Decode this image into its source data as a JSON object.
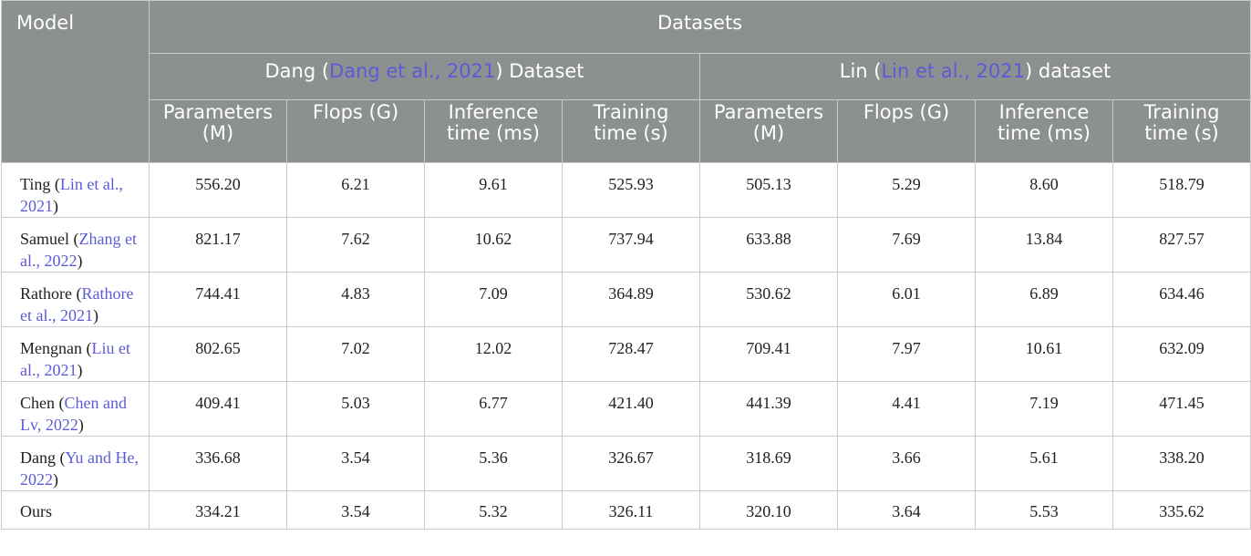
{
  "header": {
    "model": "Model",
    "datasets": "Datasets",
    "group1": {
      "name_before": "Dang (",
      "cite": "Dang et al., 2021",
      "name_after": ") Dataset"
    },
    "group2": {
      "name_before": "Lin (",
      "cite": "Lin et al., 2021",
      "name_after": ") dataset"
    },
    "columns": [
      [
        "Parameters",
        "(M)"
      ],
      [
        "Flops (G)",
        ""
      ],
      [
        "Inference",
        "time (ms)"
      ],
      [
        "Training",
        "time (s)"
      ],
      [
        "Parameters",
        "(M)"
      ],
      [
        "Flops (G)",
        ""
      ],
      [
        "Inference",
        "time (ms)"
      ],
      [
        "Training",
        "time (s)"
      ]
    ]
  },
  "rows": [
    {
      "name": "Ting (",
      "cite": "Lin et al., 2021",
      "close": ")",
      "values": [
        "556.20",
        "6.21",
        "9.61",
        "525.93",
        "505.13",
        "5.29",
        "8.60",
        "518.79"
      ]
    },
    {
      "name": "Samuel (",
      "cite": "Zhang et al., 2022",
      "close": ")",
      "values": [
        "821.17",
        "7.62",
        "10.62",
        "737.94",
        "633.88",
        "7.69",
        "13.84",
        "827.57"
      ]
    },
    {
      "name": "Rathore (",
      "cite": "Rathore et al., 2021",
      "close": ")",
      "values": [
        "744.41",
        "4.83",
        "7.09",
        "364.89",
        "530.62",
        "6.01",
        "6.89",
        "634.46"
      ]
    },
    {
      "name": "Mengnan (",
      "cite": "Liu et al., 2021",
      "close": ")",
      "values": [
        "802.65",
        "7.02",
        "12.02",
        "728.47",
        "709.41",
        "7.97",
        "10.61",
        "632.09"
      ]
    },
    {
      "name": "Chen (",
      "cite": "Chen and Lv, 2022",
      "close": ")",
      "values": [
        "409.41",
        "5.03",
        "6.77",
        "421.40",
        "441.39",
        "4.41",
        "7.19",
        "471.45"
      ]
    },
    {
      "name": "Dang (",
      "cite": "Yu and He, 2022",
      "close": ")",
      "values": [
        "336.68",
        "3.54",
        "5.36",
        "326.67",
        "318.69",
        "3.66",
        "5.61",
        "338.20"
      ]
    },
    {
      "name": "Ours",
      "cite": "",
      "close": "",
      "values": [
        "334.21",
        "3.54",
        "5.32",
        "326.11",
        "320.10",
        "3.64",
        "5.53",
        "335.62"
      ]
    }
  ]
}
